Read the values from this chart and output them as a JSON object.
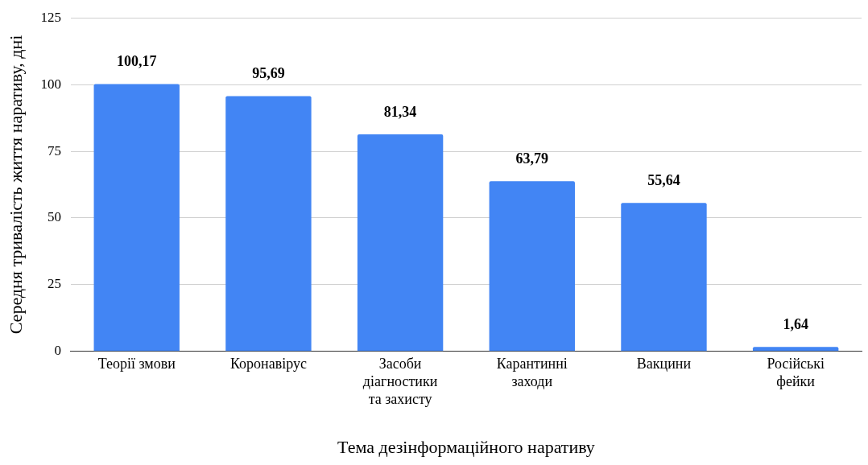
{
  "chart_data": {
    "type": "bar",
    "xlabel": "Тема дезінформаційного наративу",
    "ylabel": "Середня тривалість життя наративу, дні",
    "categories": [
      "Теорії змови",
      "Коронавірус",
      "Засоби діагностики та захисту",
      "Карантинні заходи",
      "Вакцини",
      "Російські фейки"
    ],
    "values": [
      100.17,
      95.69,
      81.34,
      63.79,
      55.64,
      1.64
    ],
    "value_labels": [
      "100,17",
      "95,69",
      "81,34",
      "63,79",
      "55,64",
      "1,64"
    ],
    "color": "#4285f4",
    "ylim": [
      0,
      125
    ],
    "yticks": [
      0,
      25,
      50,
      75,
      100,
      125
    ],
    "grid": "y"
  }
}
